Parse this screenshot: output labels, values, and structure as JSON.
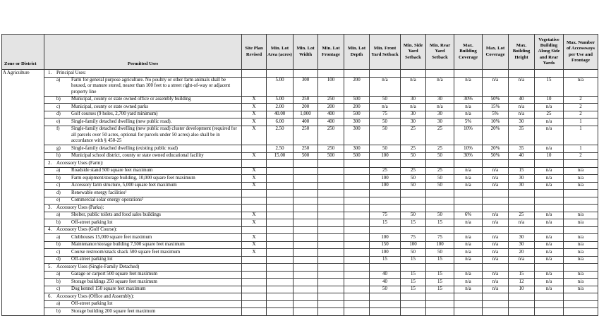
{
  "colors": {
    "header_bg": "#e4e4e4",
    "border": "#3a3a3a",
    "text": "#000000"
  },
  "table": {
    "zone": "A Agriculture",
    "headers": [
      "Zone or District",
      "Permitted Uses",
      "Site Plan Revised",
      "Min. Lot Area (acres)",
      "Min. Lot Width",
      "Min. Lot Frontage",
      "Min. Lot Depth",
      "Min. Front Yard Setback",
      "Min. Side Yard Setback",
      "Min. Rear Yard Setback",
      "Max. Building Coverage",
      "Max. Lot Coverage",
      "Max. Building Height",
      "Vegetative Building Along Side and Rear Yards",
      "Max. Number of Accessways per Use and Frontage"
    ],
    "rows": [
      {
        "t": "section",
        "n": "1.",
        "label": "Principal Uses:",
        "cells": [
          "",
          "",
          "",
          "",
          "",
          "",
          "",
          "",
          "",
          "",
          "",
          "",
          ""
        ]
      },
      {
        "t": "item",
        "n": "a)",
        "tall": true,
        "label": "Farm for general purpose agriculture. No poultry or other farm animals shall be housed, or manure stored, nearer than 100 feet to a street right-of-way or adjacent property line",
        "cells": [
          "",
          "5.00",
          "300",
          "100",
          "200",
          "n/a",
          "n/a",
          "n/a",
          "n/a",
          "n/a",
          "n/a",
          "15",
          "n/a"
        ]
      },
      {
        "t": "item",
        "n": "b)",
        "label": "Municipal, county or state owned office or assembly building",
        "cells": [
          "X",
          "5.00",
          "250",
          "250",
          "500",
          "50",
          "30",
          "30",
          "30%",
          "50%",
          "40",
          "10",
          "2"
        ]
      },
      {
        "t": "item",
        "n": "c)",
        "label": "Municipal, county or state owned parks",
        "cells": [
          "X",
          "2.00",
          "200",
          "200",
          "200",
          "n/a",
          "n/a",
          "n/a",
          "n/a",
          "15%",
          "n/a",
          "n/a",
          "2"
        ]
      },
      {
        "t": "item",
        "n": "d)",
        "label": "Golf courses (9 holes, 2,700 yard minimum)",
        "cells": [
          "X",
          "40.00",
          "1,000",
          "400",
          "500",
          "75",
          "30",
          "30",
          "n/a",
          "5%",
          "n/a",
          "25",
          "2"
        ]
      },
      {
        "t": "item",
        "n": "e)",
        "label": "Single-family detached dwelling (new public road).",
        "cells": [
          "X",
          "6.00",
          "400",
          "400",
          "300",
          "50",
          "30",
          "30",
          "5%",
          "10%",
          "30",
          "n/a",
          "1"
        ]
      },
      {
        "t": "item",
        "n": "f)",
        "tall": true,
        "label": "Single-family detached dwelling (new public road) cluster development (required for all parcels over 50 acres, optional for parcels under 50 acres) also shall be in accordance with § 450-25",
        "cells": [
          "X",
          "2.50",
          "250",
          "250",
          "300",
          "50",
          "25",
          "25",
          "10%",
          "20%",
          "35",
          "n/a",
          "1"
        ]
      },
      {
        "t": "item",
        "n": "g)",
        "label": "Single-family detached dwelling (existing public road)",
        "cells": [
          "",
          "2.50",
          "250",
          "250",
          "300",
          "50",
          "25",
          "25",
          "10%",
          "20%",
          "35",
          "n/a",
          "1"
        ]
      },
      {
        "t": "item",
        "n": "h)",
        "label": "Municipal school district, county or state owned educational facility",
        "cells": [
          "X",
          "15.00",
          "500",
          "500",
          "500",
          "100",
          "50",
          "50",
          "30%",
          "50%",
          "40",
          "10",
          "2"
        ]
      },
      {
        "t": "section",
        "n": "2.",
        "label": "Accessory Uses (Farm):",
        "cells": [
          "",
          "",
          "",
          "",
          "",
          "",
          "",
          "",
          "",
          "",
          "",
          "",
          ""
        ]
      },
      {
        "t": "item",
        "n": "a)",
        "label": "Roadside stand 500 square feet maximum",
        "cells": [
          "X",
          "",
          "",
          "",
          "",
          "25",
          "25",
          "25",
          "n/a",
          "n/a",
          "15",
          "n/a",
          "n/a"
        ]
      },
      {
        "t": "item",
        "n": "b)",
        "label": "Farm equipment/storage building, 10,000 square feet maximum",
        "cells": [
          "X",
          "",
          "",
          "",
          "",
          "100",
          "50",
          "50",
          "n/a",
          "n/a",
          "30",
          "n/a",
          "n/a"
        ]
      },
      {
        "t": "item",
        "n": "c)",
        "label": "Accessory farm structure, 5,000 square feet maximum",
        "cells": [
          "X",
          "",
          "",
          "",
          "",
          "100",
          "50",
          "50",
          "n/a",
          "n/a",
          "30",
          "n/a",
          "n/a"
        ]
      },
      {
        "t": "item",
        "n": "d)",
        "label": "Renewable energy facilities¹",
        "cells": [
          "",
          "",
          "",
          "",
          "",
          "",
          "",
          "",
          "",
          "",
          "",
          "",
          ""
        ]
      },
      {
        "t": "item",
        "n": "e)",
        "label": "Commercial solar energy operations²",
        "cells": [
          "",
          "",
          "",
          "",
          "",
          "",
          "",
          "",
          "",
          "",
          "",
          "",
          ""
        ]
      },
      {
        "t": "section",
        "n": "3.",
        "label": "Accessory Uses (Parks):",
        "cells": [
          "",
          "",
          "",
          "",
          "",
          "",
          "",
          "",
          "",
          "",
          "",
          "",
          ""
        ]
      },
      {
        "t": "item",
        "n": "a)",
        "label": "Shelter, public toilets and food sales buildings",
        "cells": [
          "X",
          "",
          "",
          "",
          "",
          "75",
          "50",
          "50",
          "6%",
          "n/a",
          "25",
          "n/a",
          "n/a"
        ]
      },
      {
        "t": "item",
        "n": "b)",
        "label": "Off-street parking lot",
        "cells": [
          "X",
          "",
          "",
          "",
          "",
          "15",
          "15",
          "15",
          "n/a",
          "n/a",
          "n/a",
          "n/a",
          "n/a"
        ]
      },
      {
        "t": "section",
        "n": "4.",
        "label": "Accessory Uses (Golf Course):",
        "cells": [
          "",
          "",
          "",
          "",
          "",
          "",
          "",
          "",
          "",
          "",
          "",
          "",
          ""
        ]
      },
      {
        "t": "item",
        "n": "a)",
        "label": "Clubhouses 15,000 square feet maximum",
        "cells": [
          "X",
          "",
          "",
          "",
          "",
          "100",
          "75",
          "75",
          "n/a",
          "n/a",
          "30",
          "n/a",
          "n/a"
        ]
      },
      {
        "t": "item",
        "n": "b)",
        "label": "Maintenance/storage building 7,500 square feet maximum",
        "cells": [
          "X",
          "",
          "",
          "",
          "",
          "150",
          "100",
          "100",
          "n/a",
          "n/a",
          "30",
          "n/a",
          "n/a"
        ]
      },
      {
        "t": "item",
        "n": "c)",
        "label": "Course restroom/snack shack 500 square feet maximum",
        "cells": [
          "X",
          "",
          "",
          "",
          "",
          "100",
          "50",
          "50",
          "n/a",
          "n/a",
          "20",
          "n/a",
          "n/a"
        ]
      },
      {
        "t": "item",
        "n": "d)",
        "label": "Off-street parking lot",
        "cells": [
          "",
          "",
          "",
          "",
          "",
          "15",
          "15",
          "15",
          "n/a",
          "n/a",
          "n/a",
          "n/a",
          "n/a"
        ]
      },
      {
        "t": "section",
        "n": "5.",
        "label": "Accessory Uses (Single-Family Detached)",
        "cells": [
          "",
          "",
          "",
          "",
          "",
          "",
          "",
          "",
          "",
          "",
          "",
          "",
          ""
        ]
      },
      {
        "t": "item",
        "n": "a)",
        "label": "Garage or carport 500 square feet maximum",
        "cells": [
          "",
          "",
          "",
          "",
          "",
          "40",
          "15",
          "15",
          "n/a",
          "n/a",
          "15",
          "n/a",
          "n/a"
        ]
      },
      {
        "t": "item",
        "n": "b)",
        "label": "Storage buildings 250 square feet maximum",
        "cells": [
          "",
          "",
          "",
          "",
          "",
          "40",
          "15",
          "15",
          "n/a",
          "n/a",
          "12",
          "n/a",
          "n/a"
        ]
      },
      {
        "t": "item",
        "n": "c)",
        "label": "Dog kennel 150 square feet maximum",
        "cells": [
          "",
          "",
          "",
          "",
          "",
          "50",
          "15",
          "15",
          "n/a",
          "n/a",
          "10",
          "n/a",
          "n/a"
        ]
      },
      {
        "t": "section",
        "n": "6.",
        "label": "Accessory Uses (Office and Assembly):",
        "cells": [
          "",
          "",
          "",
          "",
          "",
          "",
          "",
          "",
          "",
          "",
          "",
          "",
          ""
        ]
      },
      {
        "t": "item",
        "n": "a)",
        "label": "Off-street parking lot",
        "cells": [
          "",
          "",
          "",
          "",
          "",
          "",
          "",
          "",
          "",
          "",
          "",
          "",
          ""
        ]
      },
      {
        "t": "item",
        "n": "b)",
        "label": "Storage building 200 square feet maximum",
        "cells": [
          "",
          "",
          "",
          "",
          "",
          "",
          "",
          "",
          "",
          "",
          "",
          "",
          ""
        ]
      }
    ]
  }
}
